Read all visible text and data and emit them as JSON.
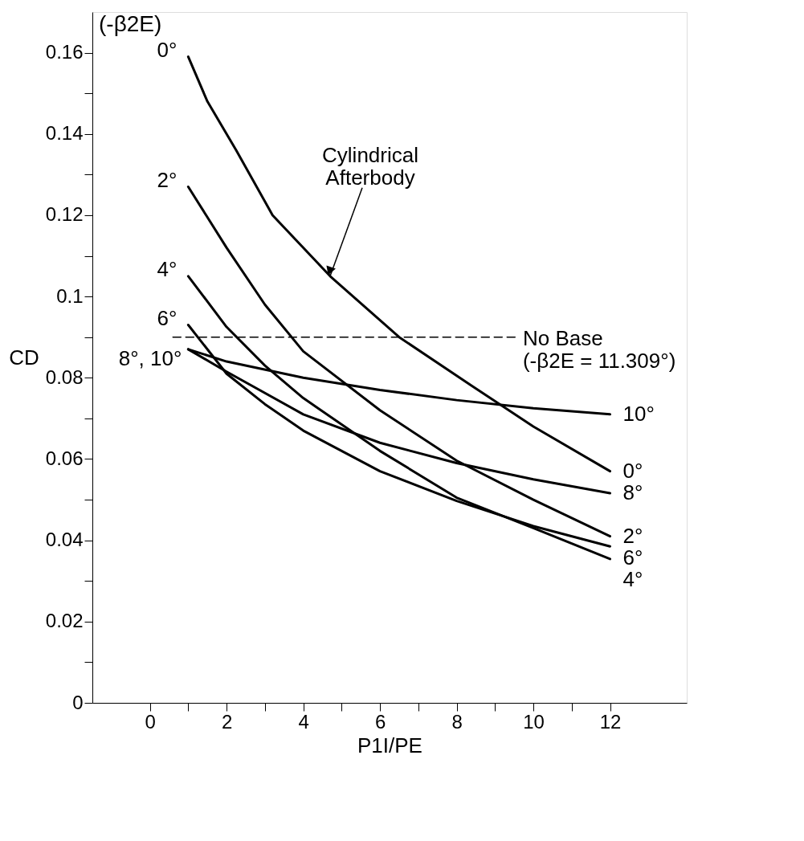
{
  "chart_data": {
    "type": "line",
    "xlabel": "P1I/PE",
    "ylabel": "CD",
    "legend_title": "(-β2E)",
    "xlim": [
      -1.5,
      14
    ],
    "ylim": [
      0,
      0.17
    ],
    "xticks": [
      0,
      {
        "value": 1,
        "label": null
      },
      2,
      {
        "value": 3,
        "label": null
      },
      4,
      {
        "value": 5,
        "label": null
      },
      6,
      {
        "value": 7,
        "label": null
      },
      8,
      {
        "value": 9,
        "label": null
      },
      10,
      {
        "value": 11,
        "label": null
      },
      12
    ],
    "yticks": [
      0,
      {
        "value": 0.01,
        "label": null
      },
      0.02,
      {
        "value": 0.03,
        "label": null
      },
      0.04,
      {
        "value": 0.05,
        "label": null
      },
      0.06,
      {
        "value": 0.07,
        "label": null
      },
      0.08,
      {
        "value": 0.09,
        "label": null
      },
      0.1,
      {
        "value": 0.11,
        "label": null
      },
      0.12,
      {
        "value": 0.13,
        "label": null
      },
      0.14,
      {
        "value": 0.15,
        "label": null
      },
      0.16
    ],
    "grid": false,
    "marker": "none",
    "line_style": "solid",
    "series": [
      {
        "name": "0°",
        "color": "#000000",
        "x": [
          1,
          1.5,
          2.25,
          3.2,
          4.7,
          6.5,
          8.4,
          10,
          12
        ],
        "values": [
          0.159,
          0.148,
          0.136,
          0.12,
          0.105,
          0.09,
          0.078,
          0.068,
          0.057
        ]
      },
      {
        "name": "2°",
        "color": "#000000",
        "x": [
          1,
          2,
          3,
          4,
          6,
          8,
          10,
          12
        ],
        "values": [
          0.127,
          0.112,
          0.098,
          0.0865,
          0.072,
          0.0596,
          0.05,
          0.041
        ]
      },
      {
        "name": "4°",
        "color": "#000000",
        "x": [
          1,
          2,
          3,
          4,
          6,
          8,
          10,
          12
        ],
        "values": [
          0.105,
          0.0925,
          0.083,
          0.075,
          0.062,
          0.0505,
          0.043,
          0.0354
        ]
      },
      {
        "name": "6°",
        "color": "#000000",
        "x": [
          1,
          2,
          3,
          4,
          6,
          8,
          10,
          12
        ],
        "values": [
          0.093,
          0.081,
          0.0735,
          0.067,
          0.057,
          0.0497,
          0.0435,
          0.0385
        ]
      },
      {
        "name": "8°",
        "color": "#000000",
        "x": [
          1,
          2,
          4,
          6,
          8,
          10,
          12
        ],
        "values": [
          0.087,
          0.0815,
          0.071,
          0.064,
          0.059,
          0.055,
          0.0516
        ]
      },
      {
        "name": "10°",
        "color": "#000000",
        "x": [
          1,
          2,
          4,
          6,
          8,
          10,
          12
        ],
        "values": [
          0.087,
          0.084,
          0.08,
          0.077,
          0.0745,
          0.0725,
          0.071
        ]
      },
      {
        "name": "No Base\n(-β2E = 11.309°)",
        "color": "#000000",
        "line_style": "dashed",
        "x": [
          0.6,
          9.6
        ],
        "values": [
          0.09,
          0.09
        ]
      }
    ],
    "annotations": [
      {
        "text": "Cylindrical\nAfterbody",
        "x": 4.7,
        "y": 0.105
      },
      {
        "text": "8°, 10°",
        "x": 1,
        "y": 0.087
      }
    ]
  }
}
